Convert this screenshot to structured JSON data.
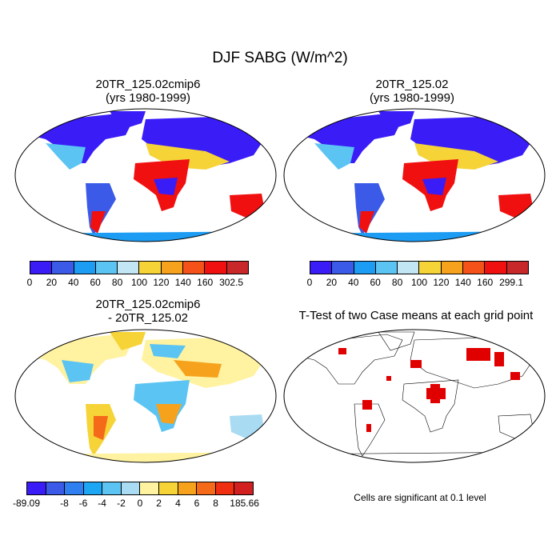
{
  "title": "DJF SABG (W/m^2)",
  "panels": [
    {
      "title_line1": "20TR_125.02cmip6",
      "title_line2": "(yrs 1980-1999)"
    },
    {
      "title_line1": "20TR_125.02",
      "title_line2": "(yrs 1980-1999)"
    },
    {
      "title_line1": "20TR_125.02cmip6",
      "title_line2": "- 20TR_125.02"
    },
    {
      "title_line1": "T-Test of two Case means at each grid point",
      "title_line2": ""
    }
  ],
  "colorbar_abs_1": {
    "colors": [
      "#3a1cf7",
      "#3b5ae8",
      "#1c9cf3",
      "#5bc4f3",
      "#c3e6f5",
      "#f6d337",
      "#f7a21c",
      "#f45219",
      "#f01010",
      "#c8282a"
    ],
    "labels": [
      "0",
      "20",
      "40",
      "60",
      "80",
      "100",
      "120",
      "140",
      "160",
      "302.5"
    ]
  },
  "colorbar_abs_2": {
    "colors": [
      "#3a1cf7",
      "#3b5ae8",
      "#1c9cf3",
      "#5bc4f3",
      "#c3e6f5",
      "#f6d337",
      "#f7a21c",
      "#f45219",
      "#f01010",
      "#c8282a"
    ],
    "labels": [
      "0",
      "20",
      "40",
      "60",
      "80",
      "100",
      "120",
      "140",
      "160",
      "299.1"
    ]
  },
  "colorbar_diff": {
    "colors": [
      "#3a1cf7",
      "#3b5ae8",
      "#2f7ff0",
      "#1ca6f4",
      "#5bc4f3",
      "#a9dcf3",
      "#fff2a0",
      "#f6d337",
      "#f7a21c",
      "#f46a19",
      "#f02f10",
      "#d22020"
    ],
    "labels": [
      "-89.09",
      "-8",
      "-6",
      "-4",
      "-2",
      "0",
      "2",
      "4",
      "6",
      "8",
      "185.66"
    ]
  },
  "significance_note": "Cells are significant at 0.1 level"
}
